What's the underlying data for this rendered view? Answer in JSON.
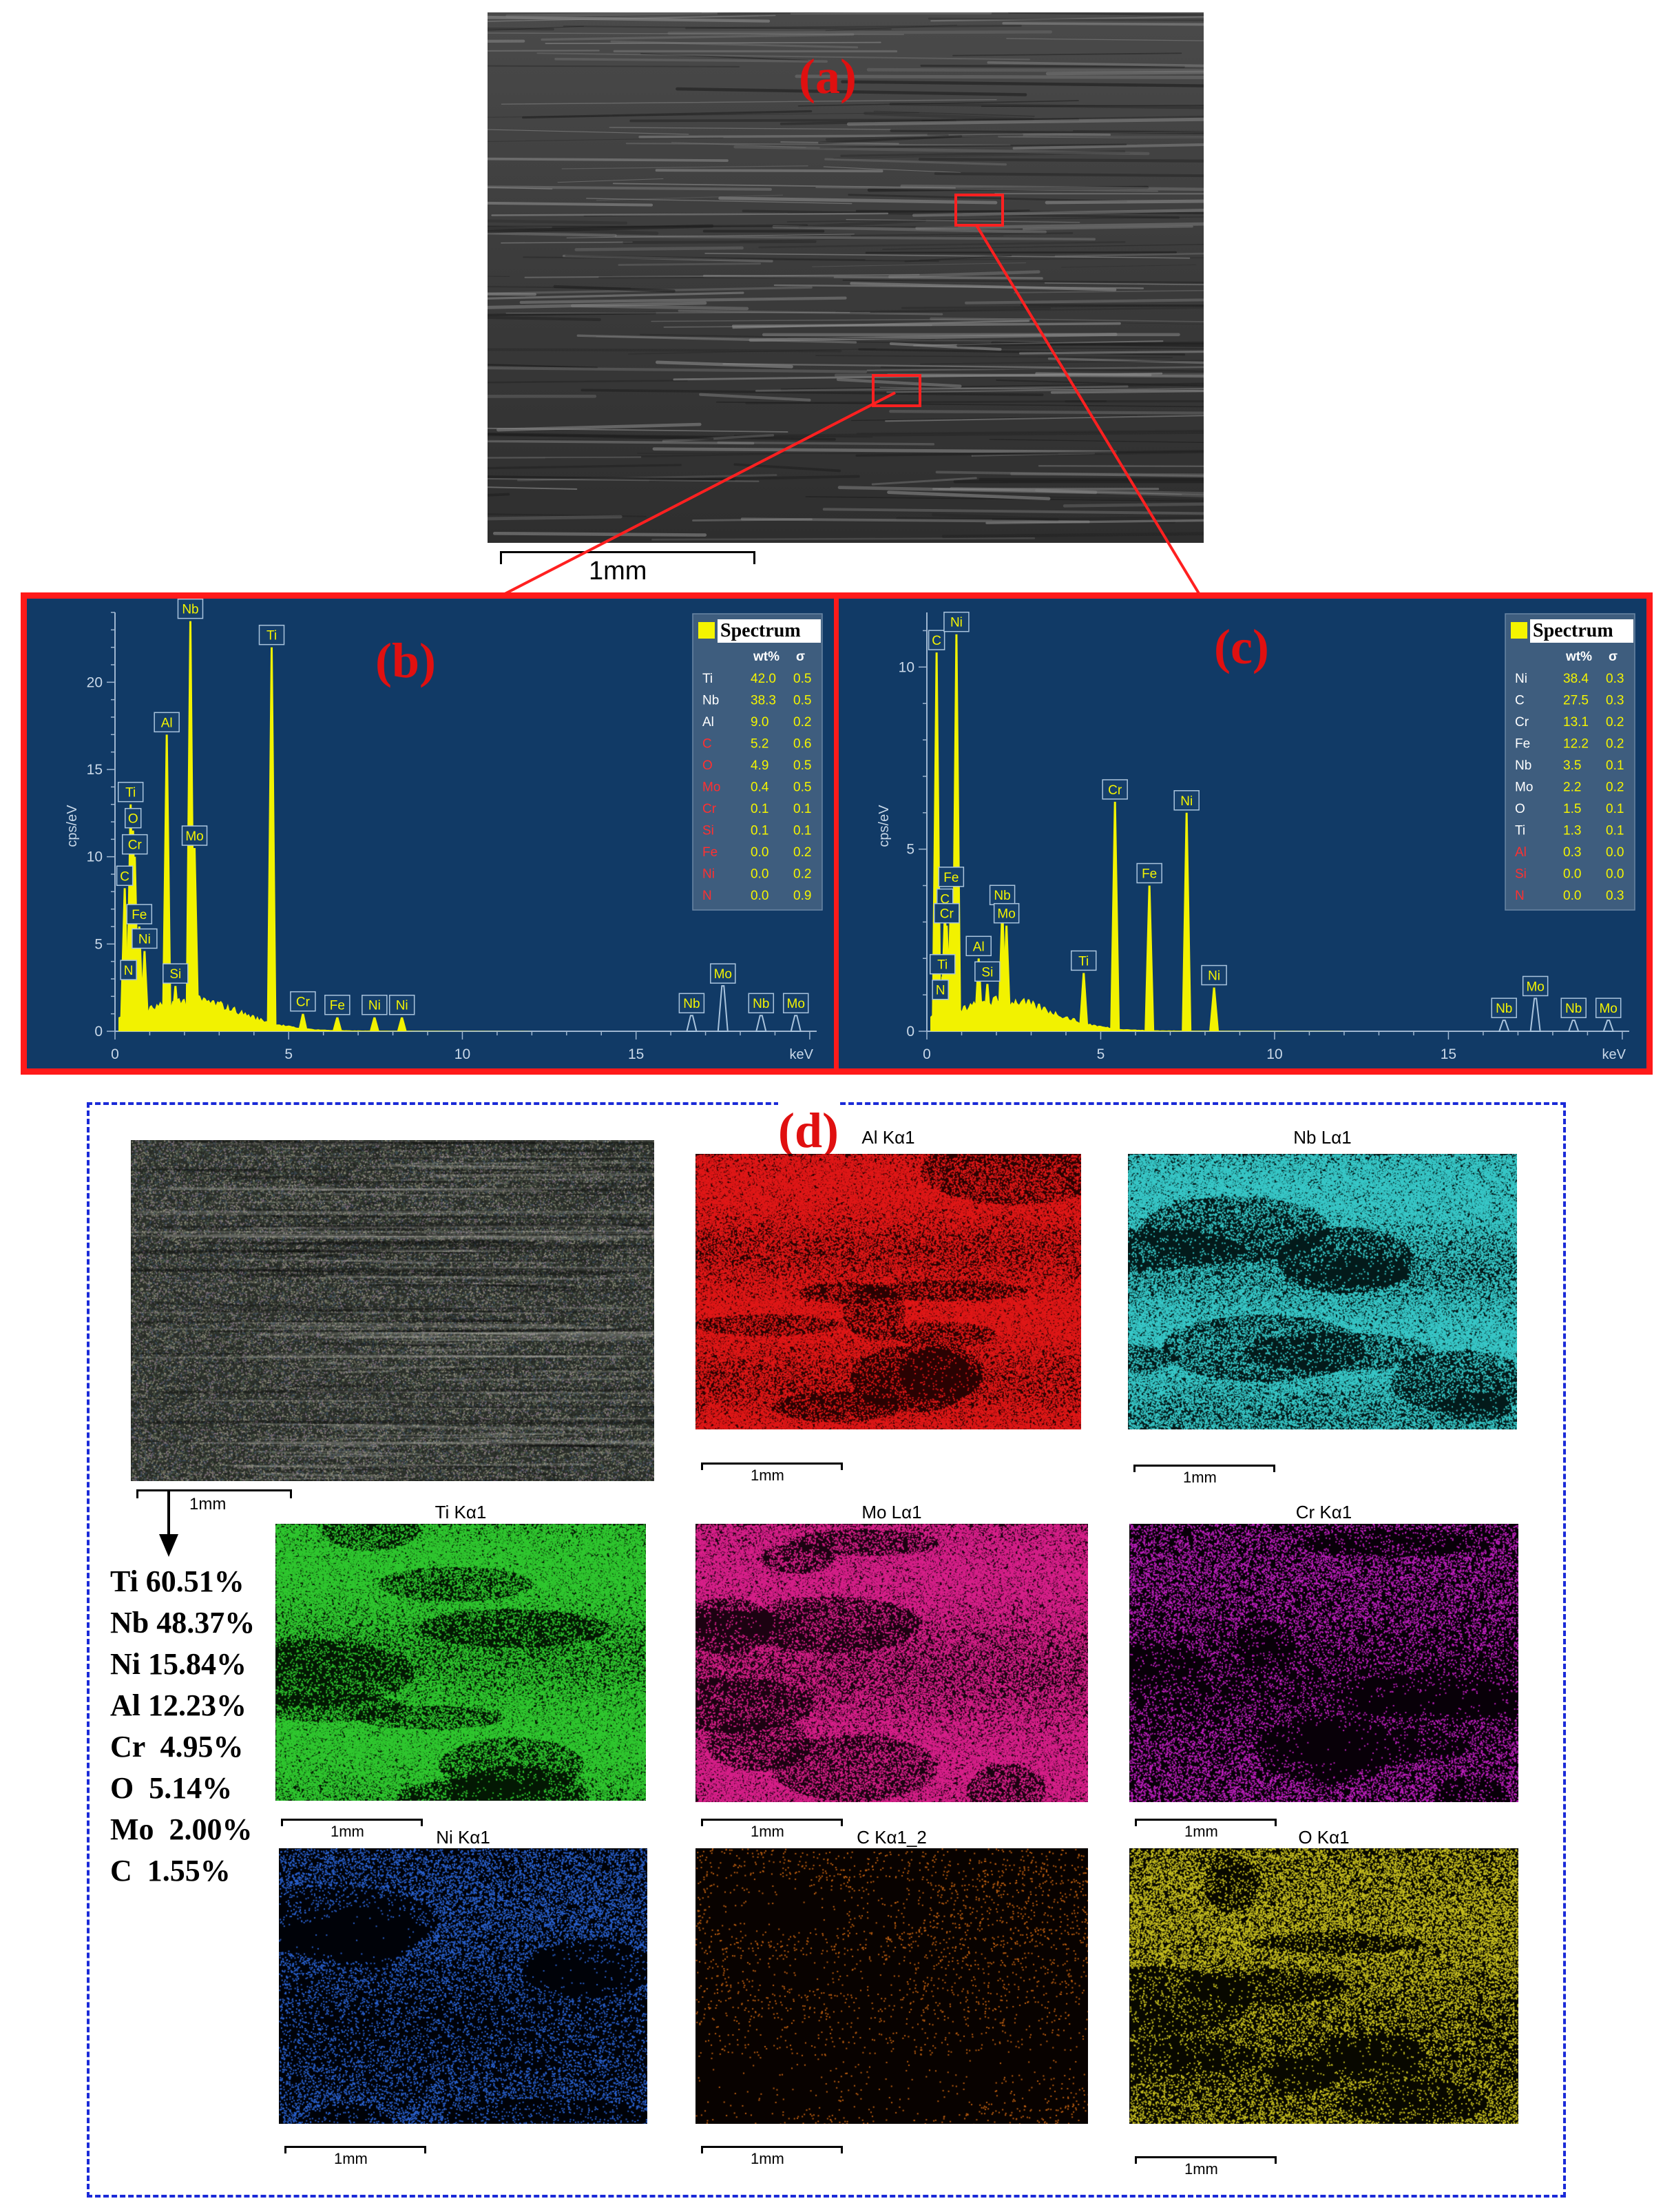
{
  "panel_a": {
    "letter": "(a)",
    "scale_label": "1mm"
  },
  "panel_b": {
    "letter": "(b)",
    "y_axis_label": "cps/eV",
    "x_axis_label": "keV",
    "y_ticks": [
      "0",
      "5",
      "10",
      "15",
      "20"
    ],
    "x_ticks": [
      "0",
      "5",
      "10",
      "15"
    ],
    "legend_title": "Spectrum",
    "legend_headers": [
      "wt%",
      "σ"
    ],
    "legend_rows": [
      {
        "el": "Ti",
        "wt": "42.0",
        "s": "0.5",
        "color": "#ffffff"
      },
      {
        "el": "Nb",
        "wt": "38.3",
        "s": "0.5",
        "color": "#ffffff"
      },
      {
        "el": "Al",
        "wt": "9.0",
        "s": "0.2",
        "color": "#ffffff"
      },
      {
        "el": "C",
        "wt": "5.2",
        "s": "0.6",
        "color": "#ff3030"
      },
      {
        "el": "O",
        "wt": "4.9",
        "s": "0.5",
        "color": "#ff3030"
      },
      {
        "el": "Mo",
        "wt": "0.4",
        "s": "0.5",
        "color": "#ff3030"
      },
      {
        "el": "Cr",
        "wt": "0.1",
        "s": "0.1",
        "color": "#ff3030"
      },
      {
        "el": "Si",
        "wt": "0.1",
        "s": "0.1",
        "color": "#ff3030"
      },
      {
        "el": "Fe",
        "wt": "0.0",
        "s": "0.2",
        "color": "#ff3030"
      },
      {
        "el": "Ni",
        "wt": "0.0",
        "s": "0.2",
        "color": "#ff3030"
      },
      {
        "el": "N",
        "wt": "0.0",
        "s": "0.9",
        "color": "#ff3030"
      }
    ],
    "peaks": [
      {
        "label": "Nb",
        "kev": 2.17,
        "cps": 23.5
      },
      {
        "label": "Ti",
        "kev": 4.51,
        "cps": 22.0
      },
      {
        "label": "Al",
        "kev": 1.49,
        "cps": 17.0
      },
      {
        "label": "Mo",
        "kev": 2.29,
        "cps": 10.5
      },
      {
        "label": "Ti",
        "kev": 0.45,
        "cps": 13.0
      },
      {
        "label": "O",
        "kev": 0.52,
        "cps": 11.5
      },
      {
        "label": "Cr",
        "kev": 0.57,
        "cps": 10.0
      },
      {
        "label": "C",
        "kev": 0.28,
        "cps": 8.2
      },
      {
        "label": "Fe",
        "kev": 0.7,
        "cps": 6.0
      },
      {
        "label": "Ni",
        "kev": 0.85,
        "cps": 4.6
      },
      {
        "label": "N",
        "kev": 0.39,
        "cps": 2.8
      },
      {
        "label": "Si",
        "kev": 1.74,
        "cps": 2.6
      },
      {
        "label": "Cr",
        "kev": 5.41,
        "cps": 1.0
      },
      {
        "label": "Fe",
        "kev": 6.4,
        "cps": 0.8
      },
      {
        "label": "Ni",
        "kev": 7.47,
        "cps": 0.8
      },
      {
        "label": "Ni",
        "kev": 8.26,
        "cps": 0.8
      },
      {
        "label": "Nb",
        "kev": 16.6,
        "cps": 0.9
      },
      {
        "label": "Mo",
        "kev": 17.5,
        "cps": 2.6
      },
      {
        "label": "Nb",
        "kev": 18.6,
        "cps": 0.9
      },
      {
        "label": "Mo",
        "kev": 19.6,
        "cps": 0.9
      }
    ]
  },
  "panel_c": {
    "letter": "(c)",
    "y_axis_label": "cps/eV",
    "x_axis_label": "keV",
    "y_ticks": [
      "0",
      "5",
      "10"
    ],
    "x_ticks": [
      "0",
      "5",
      "10",
      "15"
    ],
    "legend_title": "Spectrum",
    "legend_headers": [
      "wt%",
      "σ"
    ],
    "legend_rows": [
      {
        "el": "Ni",
        "wt": "38.4",
        "s": "0.3",
        "color": "#ffffff"
      },
      {
        "el": "C",
        "wt": "27.5",
        "s": "0.3",
        "color": "#ffffff"
      },
      {
        "el": "Cr",
        "wt": "13.1",
        "s": "0.2",
        "color": "#ffffff"
      },
      {
        "el": "Fe",
        "wt": "12.2",
        "s": "0.2",
        "color": "#ffffff"
      },
      {
        "el": "Nb",
        "wt": "3.5",
        "s": "0.1",
        "color": "#ffffff"
      },
      {
        "el": "Mo",
        "wt": "2.2",
        "s": "0.2",
        "color": "#ffffff"
      },
      {
        "el": "O",
        "wt": "1.5",
        "s": "0.1",
        "color": "#ffffff"
      },
      {
        "el": "Ti",
        "wt": "1.3",
        "s": "0.1",
        "color": "#ffffff"
      },
      {
        "el": "Al",
        "wt": "0.3",
        "s": "0.0",
        "color": "#ff3030"
      },
      {
        "el": "Si",
        "wt": "0.0",
        "s": "0.0",
        "color": "#ff3030"
      },
      {
        "el": "N",
        "wt": "0.0",
        "s": "0.3",
        "color": "#ff3030"
      }
    ],
    "peaks": [
      {
        "label": "C",
        "kev": 0.28,
        "cps": 10.4
      },
      {
        "label": "Ni",
        "kev": 0.85,
        "cps": 10.9
      },
      {
        "label": "Cr",
        "kev": 5.41,
        "cps": 6.3
      },
      {
        "label": "Ni",
        "kev": 7.47,
        "cps": 6.0
      },
      {
        "label": "Fe",
        "kev": 6.4,
        "cps": 4.0
      },
      {
        "label": "Nb",
        "kev": 2.17,
        "cps": 3.4
      },
      {
        "label": "Mo",
        "kev": 2.29,
        "cps": 2.9
      },
      {
        "label": "Fe",
        "kev": 0.7,
        "cps": 3.9
      },
      {
        "label": "C",
        "kev": 0.52,
        "cps": 3.3
      },
      {
        "label": "Cr",
        "kev": 0.57,
        "cps": 2.9
      },
      {
        "label": "Al",
        "kev": 1.49,
        "cps": 2.0
      },
      {
        "label": "Ti",
        "kev": 0.45,
        "cps": 1.5
      },
      {
        "label": "Si",
        "kev": 1.74,
        "cps": 1.3
      },
      {
        "label": "N",
        "kev": 0.39,
        "cps": 0.8
      },
      {
        "label": "Ti",
        "kev": 4.51,
        "cps": 1.6
      },
      {
        "label": "Ni",
        "kev": 8.26,
        "cps": 1.2
      },
      {
        "label": "Nb",
        "kev": 16.6,
        "cps": 0.3
      },
      {
        "label": "Mo",
        "kev": 17.5,
        "cps": 0.9
      },
      {
        "label": "Nb",
        "kev": 18.6,
        "cps": 0.3
      },
      {
        "label": "Mo",
        "kev": 19.6,
        "cps": 0.3
      }
    ]
  },
  "panel_d": {
    "letter": "(d)",
    "scale_label": "1mm",
    "maps": [
      {
        "title": "Al Kα1",
        "color": "#e01818",
        "dark": "#2a0202"
      },
      {
        "title": "Nb Lα1",
        "color": "#38c8c8",
        "dark": "#031a1a"
      },
      {
        "title": "Ti Kα1",
        "color": "#30c830",
        "dark": "#031803"
      },
      {
        "title": "Mo Lα1",
        "color": "#d8208a",
        "dark": "#1c0211"
      },
      {
        "title": "Cr Kα1",
        "color": "#c020c0",
        "dark": "#080008"
      },
      {
        "title": "Ni Kα1",
        "color": "#2a62d0",
        "dark": "#000208"
      },
      {
        "title": "C Kα1_2",
        "color": "#c06010",
        "dark": "#080200"
      },
      {
        "title": "O Kα1",
        "color": "#c8c020",
        "dark": "#080800"
      }
    ],
    "composition": [
      "Ti 60.51%",
      "Nb 48.37%",
      "Ni 15.84%",
      "Al 12.23%",
      "Cr  4.95%",
      "O  5.14%",
      "Mo  2.00%",
      "C  1.55%"
    ]
  }
}
